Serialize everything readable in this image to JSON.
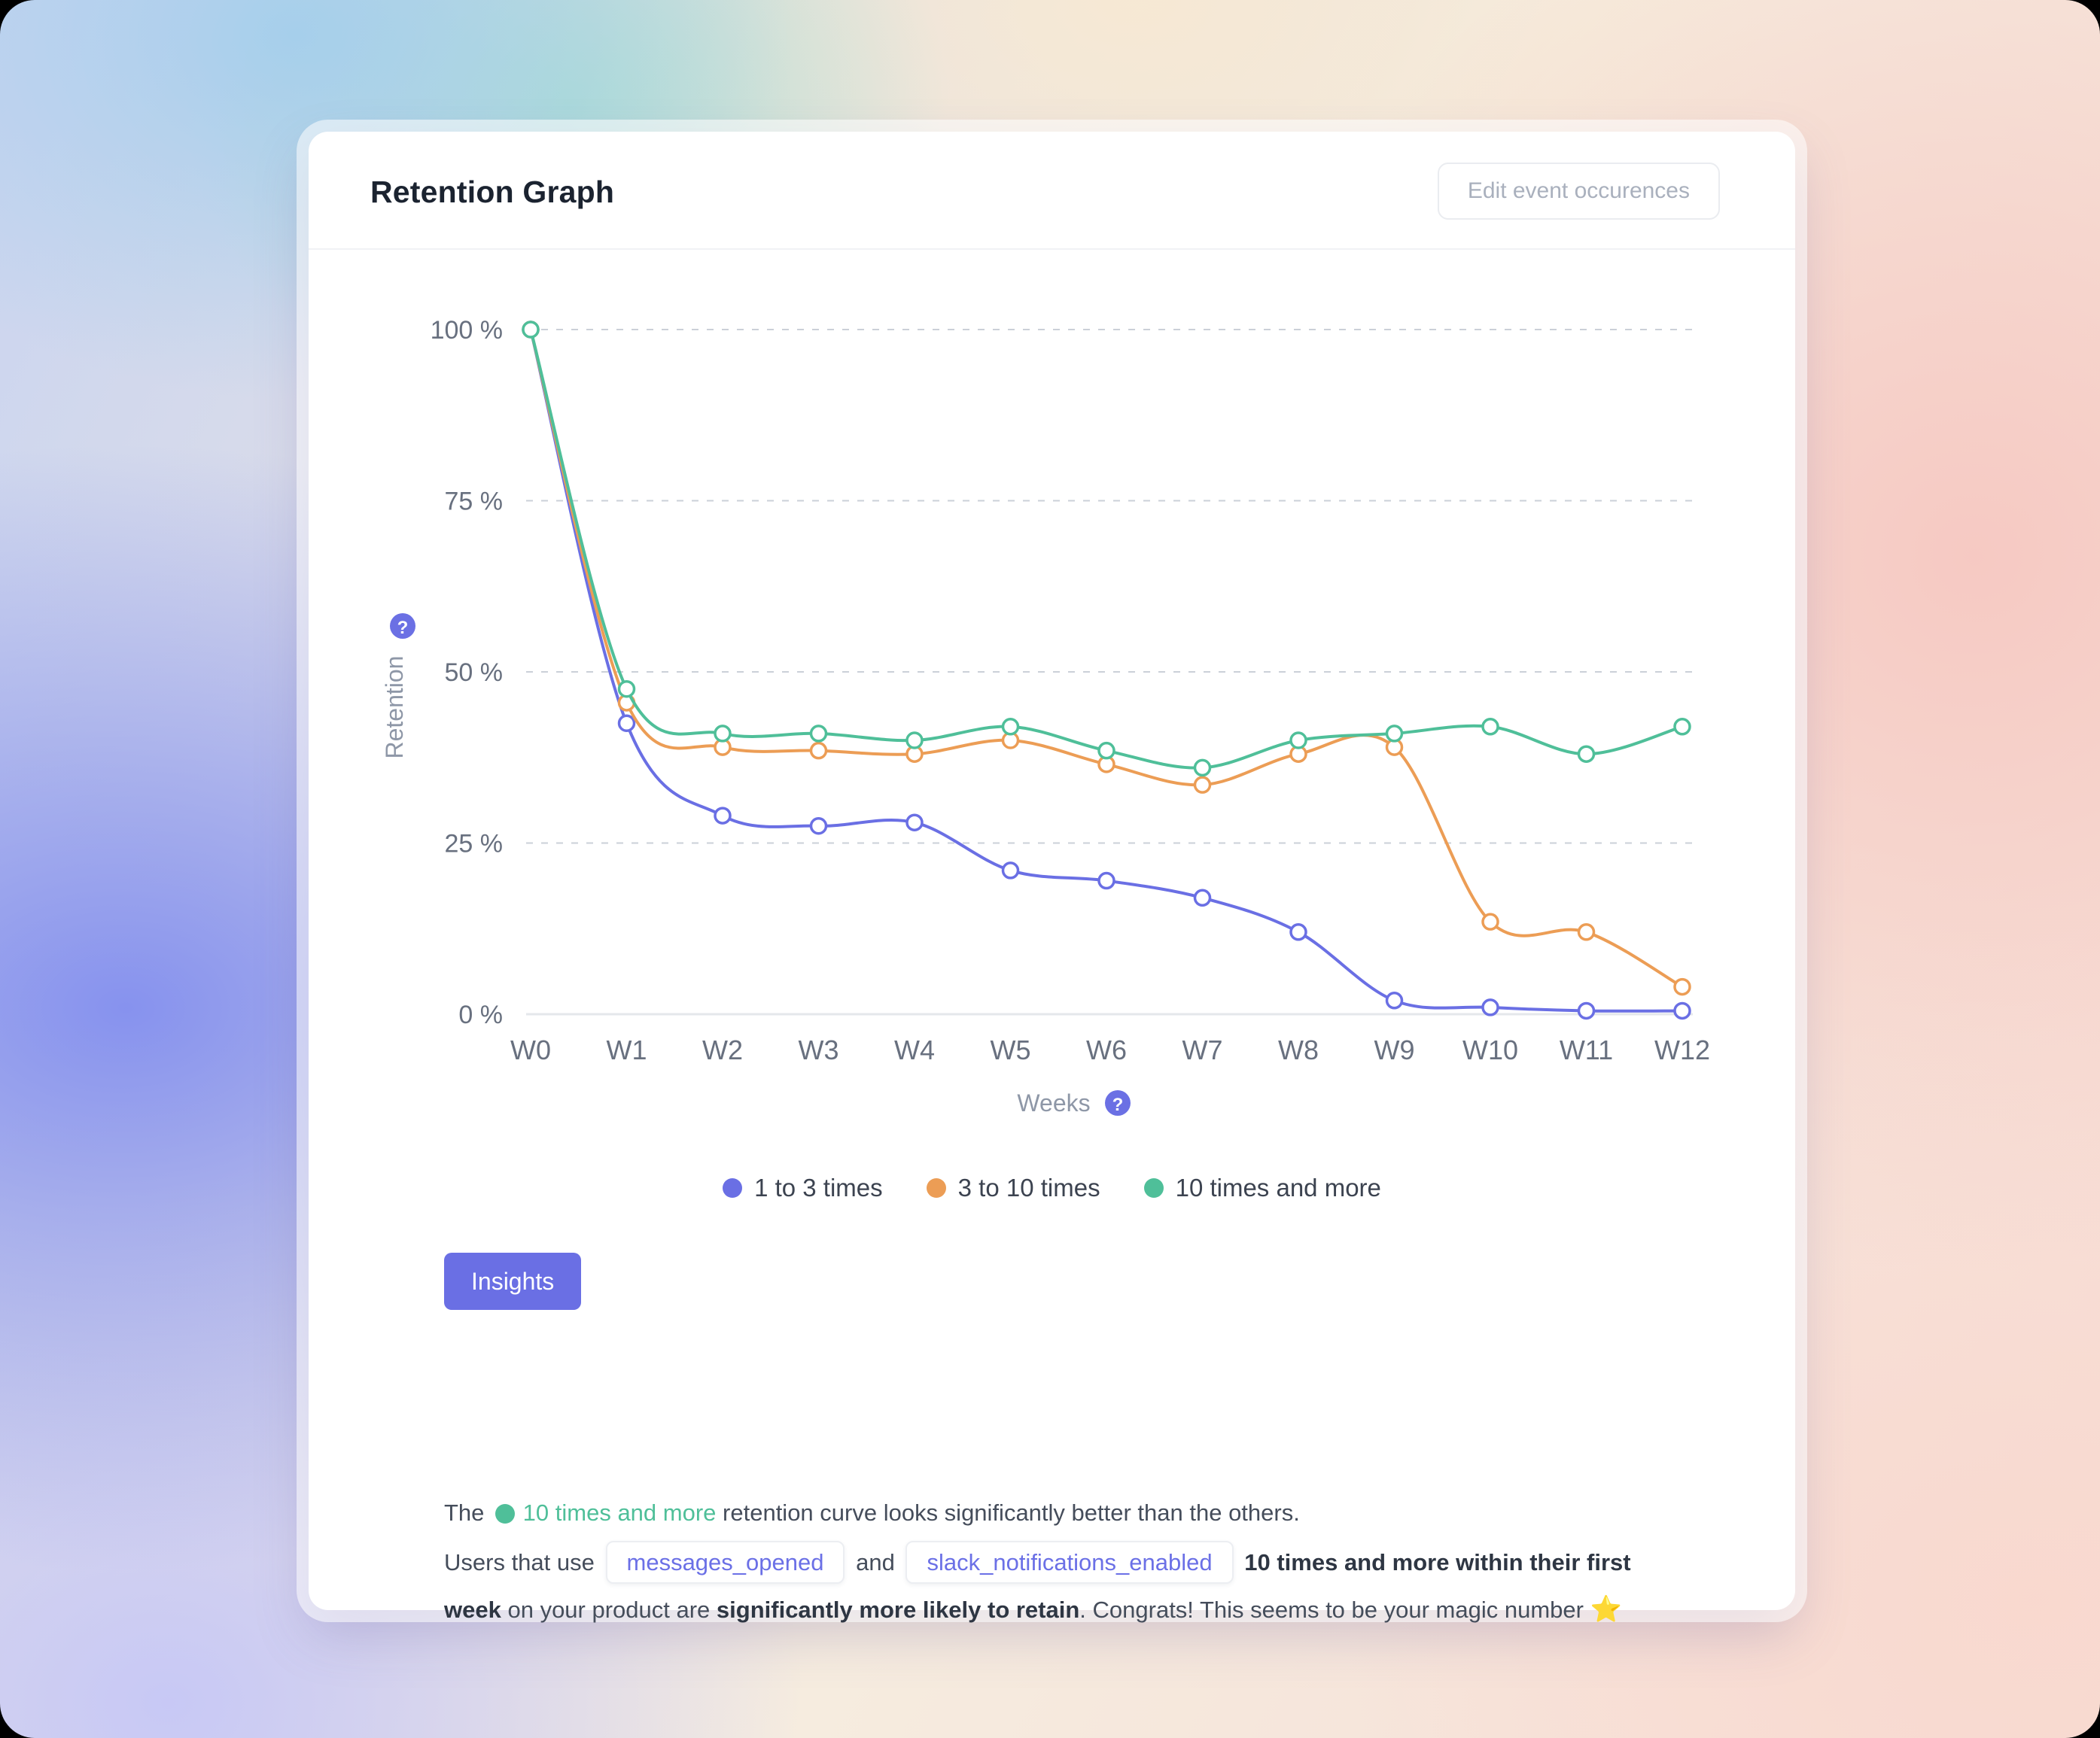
{
  "colors": {
    "accent": "#6b70e4",
    "card_background": "#ffffff",
    "grid": "#cbd0d8"
  },
  "icons": {
    "question_mark": "?"
  },
  "card": {
    "title": "Retention Graph",
    "edit_button": "Edit event occurences"
  },
  "chart_data": {
    "type": "line",
    "x_label": "Weeks",
    "y_label": "Retention",
    "categories": [
      "W0",
      "W1",
      "W2",
      "W3",
      "W4",
      "W5",
      "W6",
      "W7",
      "W8",
      "W9",
      "W10",
      "W11",
      "W12"
    ],
    "y_tick_labels": [
      "100 %",
      "75 %",
      "50 %",
      "25 %",
      "0 %"
    ],
    "ylim": [
      0,
      100
    ],
    "grid": "horizontal dashed",
    "legend_position": "bottom",
    "series": [
      {
        "name": "1 to 3 times",
        "color": "#6a6fe4",
        "values": [
          100,
          42.5,
          29,
          27.5,
          28,
          21,
          19.5,
          17,
          12,
          2,
          1,
          0.5,
          0.5
        ]
      },
      {
        "name": "3 to 10 times",
        "color": "#ec9d55",
        "values": [
          100,
          45.5,
          39,
          38.5,
          38,
          40,
          36.5,
          33.5,
          38,
          39,
          13.5,
          12,
          4
        ]
      },
      {
        "name": "10 times and more",
        "color": "#4fbf99",
        "values": [
          100,
          47.5,
          41,
          41,
          40,
          42,
          38.5,
          36,
          40,
          41,
          42,
          38,
          42
        ]
      }
    ]
  },
  "insight": {
    "button_label": "Insights",
    "intro_prefix": "The",
    "series_ref": "10 times and more",
    "intro_suffix": "retention curve looks significantly better than the others.",
    "line2_prefix": "Users that use",
    "event1": "messages_opened",
    "conjunction": "and",
    "event2": "slack_notifications_enabled",
    "bold1": "10 times and more within their first week",
    "mid1": "on your product are",
    "bold2": "significantly more likely to retain",
    "tail": ". Congrats! This seems to be your magic number",
    "star_emoji": "⭐"
  }
}
